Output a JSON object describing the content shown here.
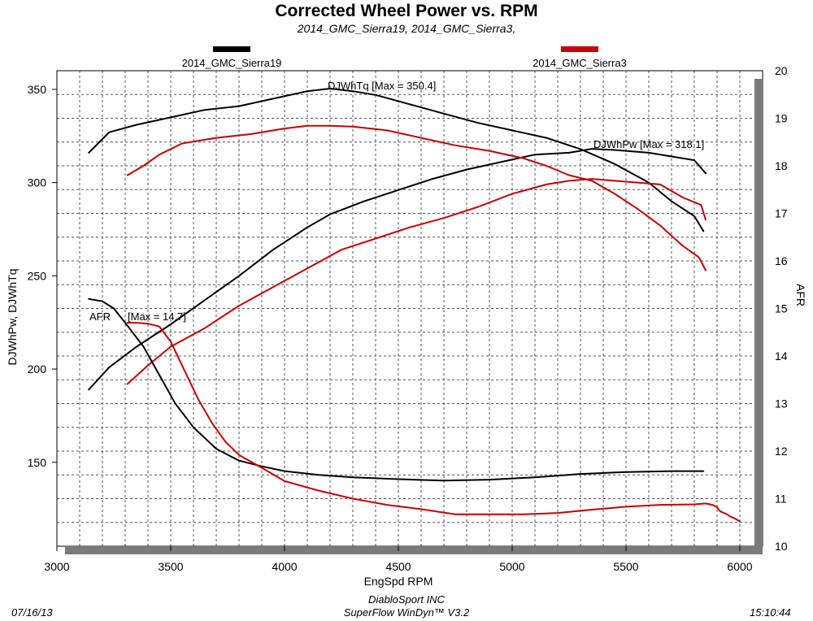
{
  "header": {
    "title": "Corrected Wheel Power vs. RPM",
    "subtitle": "2014_GMC_Sierra19, 2014_GMC_Sierra3,"
  },
  "footer": {
    "date": "07/16/13",
    "company": "DiabloSport INC",
    "software": "SuperFlow WinDyn™ V3.2",
    "time": "15:10:44"
  },
  "chart_data": {
    "type": "line",
    "xlabel": "EngSpd RPM",
    "ylabel_left": "DJWhPw, DJWhTq",
    "ylabel_right": "AFR",
    "xlim": [
      3000,
      6100
    ],
    "ylim_left": [
      105,
      360
    ],
    "ylim_right": [
      10,
      20
    ],
    "x_ticks": [
      3000,
      3500,
      4000,
      4500,
      5000,
      5500,
      6000
    ],
    "y_left_ticks": [
      150,
      200,
      250,
      300,
      350
    ],
    "y_right_ticks": [
      10,
      11,
      12,
      13,
      14,
      15,
      16,
      17,
      18,
      19,
      20
    ],
    "grid": true,
    "legend": [
      {
        "name": "2014_GMC_Sierra19",
        "color": "#000000"
      },
      {
        "name": "2014_GMC_Sierra3",
        "color": "#cc0000"
      }
    ],
    "annotations": {
      "torque_max": "DJWhTq [Max = 350.4]",
      "power_max": "DJWhPw [Max = 318.1]",
      "afr_label": "AFR",
      "afr_max": "[Max = 14.7]"
    },
    "series": [
      {
        "name": "2014_GMC_Sierra19 DJWhTq",
        "color": "#000000",
        "axis": "left",
        "x": [
          3140,
          3230,
          3350,
          3500,
          3650,
          3800,
          3950,
          4100,
          4200,
          4300,
          4400,
          4550,
          4700,
          4850,
          5000,
          5150,
          5300,
          5450,
          5600,
          5700,
          5800,
          5840
        ],
        "y": [
          316,
          327,
          331,
          335,
          339,
          341,
          345,
          349,
          350.4,
          349,
          347,
          342,
          337,
          332,
          328,
          324,
          318,
          310,
          300,
          290,
          282,
          274
        ]
      },
      {
        "name": "2014_GMC_Sierra19 DJWhPw",
        "color": "#000000",
        "axis": "left",
        "x": [
          3140,
          3230,
          3350,
          3500,
          3650,
          3800,
          3950,
          4100,
          4200,
          4350,
          4500,
          4650,
          4800,
          4950,
          5100,
          5250,
          5350,
          5450,
          5600,
          5700,
          5800,
          5850
        ],
        "y": [
          189,
          201,
          212,
          224,
          237,
          250,
          264,
          276,
          283,
          290,
          296,
          302,
          307,
          311,
          315,
          316,
          318.1,
          317.5,
          316,
          314,
          312,
          305
        ]
      },
      {
        "name": "2014_GMC_Sierra3 DJWhTq",
        "color": "#cc0000",
        "axis": "left",
        "x": [
          3310,
          3380,
          3450,
          3550,
          3700,
          3850,
          4000,
          4100,
          4200,
          4300,
          4450,
          4600,
          4750,
          4900,
          5050,
          5150,
          5250,
          5350,
          5450,
          5550,
          5650,
          5750,
          5820,
          5850
        ],
        "y": [
          304,
          309,
          315,
          321,
          324,
          326,
          329,
          330.5,
          330.5,
          330,
          328,
          324,
          320,
          317,
          313,
          309,
          304,
          301,
          294,
          286,
          277,
          266,
          260,
          253
        ]
      },
      {
        "name": "2014_GMC_Sierra3 DJWhPw",
        "color": "#cc0000",
        "axis": "left",
        "x": [
          3310,
          3400,
          3500,
          3650,
          3800,
          3950,
          4100,
          4250,
          4400,
          4550,
          4700,
          4850,
          5000,
          5150,
          5250,
          5350,
          5450,
          5550,
          5650,
          5750,
          5830,
          5850
        ],
        "y": [
          192,
          202,
          212,
          222,
          234,
          244,
          254,
          264,
          270,
          276,
          281,
          287,
          294,
          299,
          301,
          302,
          301,
          300,
          299,
          292,
          288,
          280
        ]
      },
      {
        "name": "2014_GMC_Sierra19 AFR",
        "color": "#000000",
        "axis": "right",
        "x": [
          3140,
          3200,
          3250,
          3300,
          3380,
          3450,
          3520,
          3600,
          3700,
          3800,
          3900,
          4000,
          4150,
          4300,
          4500,
          4700,
          4900,
          5100,
          5300,
          5500,
          5700,
          5840
        ],
        "y": [
          15.2,
          15.15,
          15.0,
          14.7,
          14.2,
          13.6,
          13.0,
          12.5,
          12.05,
          11.8,
          11.68,
          11.58,
          11.5,
          11.45,
          11.41,
          11.38,
          11.4,
          11.45,
          11.52,
          11.56,
          11.58,
          11.58
        ]
      },
      {
        "name": "2014_GMC_Sierra3 AFR",
        "color": "#cc0000",
        "axis": "right",
        "x": [
          3310,
          3350,
          3400,
          3450,
          3500,
          3560,
          3620,
          3680,
          3740,
          3800,
          3900,
          4000,
          4150,
          4300,
          4450,
          4600,
          4750,
          4900,
          5050,
          5200,
          5350,
          5500,
          5650,
          5800,
          5850,
          5880,
          5900,
          5910,
          5920,
          5930,
          5940,
          5950,
          5960,
          5970,
          5980,
          5990,
          6000
        ],
        "y": [
          14.7,
          14.7,
          14.68,
          14.62,
          14.3,
          13.7,
          13.1,
          12.6,
          12.2,
          11.92,
          11.65,
          11.37,
          11.17,
          11.0,
          10.87,
          10.78,
          10.67,
          10.67,
          10.67,
          10.7,
          10.77,
          10.83,
          10.87,
          10.88,
          10.9,
          10.87,
          10.82,
          10.75,
          10.72,
          10.7,
          10.68,
          10.65,
          10.62,
          10.6,
          10.58,
          10.55,
          10.52
        ]
      }
    ]
  }
}
